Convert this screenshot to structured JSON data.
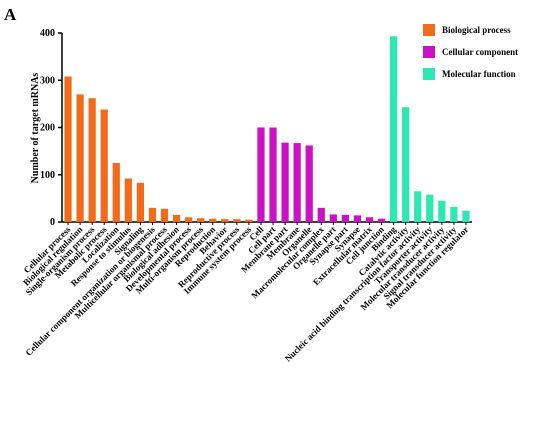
{
  "chart_data": {
    "type": "bar",
    "panel_label": "A",
    "ylabel": "Number of target mRNAs",
    "ylim": [
      0,
      400
    ],
    "yticks": [
      0,
      100,
      200,
      300,
      400
    ],
    "series": [
      {
        "name": "Biological process",
        "color": "#f26a1b",
        "categories": [
          "Cellular process",
          "Biological regulation",
          "Single-organism process",
          "Metabolic process",
          "Localization",
          "Response to stimulus",
          "Signaling",
          "Cellular component organization or biogenesis",
          "Multicellular organismal process",
          "Biological adhesion",
          "Developmental process",
          "Multi-organism process",
          "Reproduction",
          "Behavior",
          "Reproductive process",
          "Immune system process"
        ],
        "values": [
          308,
          270,
          262,
          238,
          125,
          92,
          83,
          30,
          28,
          15,
          10,
          8,
          7,
          6,
          6,
          5
        ]
      },
      {
        "name": "Cellular component",
        "color": "#cc10c4",
        "categories": [
          "Cell",
          "Cell part",
          "Membrane part",
          "Membrane",
          "Organelle",
          "Macromolecular complex",
          "Organelle part",
          "Synapse part",
          "Synapse",
          "Extracellular matrix",
          "Cell junction"
        ],
        "values": [
          200,
          200,
          168,
          167,
          162,
          30,
          16,
          15,
          14,
          10,
          7
        ]
      },
      {
        "name": "Molecular function",
        "color": "#2ee8b4",
        "categories": [
          "Binding",
          "Catalytic activity",
          "Nucleic acid binding transcription factor activity",
          "Transporter activity",
          "Molecular transducer activity",
          "Signal transducer activity",
          "Molecular function regulator"
        ],
        "values": [
          393,
          243,
          65,
          58,
          45,
          32,
          24
        ]
      }
    ]
  }
}
